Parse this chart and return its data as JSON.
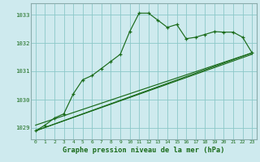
{
  "title": "Graphe pression niveau de la mer (hPa)",
  "background_color": "#ceeaee",
  "grid_color": "#8cc8c8",
  "line_color": "#1a6b1a",
  "border_color": "#8aabab",
  "xlim": [
    -0.5,
    23.5
  ],
  "ylim": [
    1028.6,
    1033.4
  ],
  "yticks": [
    1029,
    1030,
    1031,
    1032,
    1033
  ],
  "xticks": [
    0,
    1,
    2,
    3,
    4,
    5,
    6,
    7,
    8,
    9,
    10,
    11,
    12,
    13,
    14,
    15,
    16,
    17,
    18,
    19,
    20,
    21,
    22,
    23
  ],
  "series1_x": [
    0,
    1,
    2,
    3,
    4,
    5,
    6,
    7,
    8,
    9,
    10,
    11,
    12,
    13,
    14,
    15,
    16,
    17,
    18,
    19,
    20,
    21,
    22,
    23
  ],
  "series1_y": [
    1028.9,
    1029.1,
    1029.35,
    1029.5,
    1030.2,
    1030.7,
    1030.85,
    1031.1,
    1031.35,
    1031.6,
    1032.4,
    1033.05,
    1033.05,
    1032.8,
    1032.55,
    1032.65,
    1032.15,
    1032.2,
    1032.3,
    1032.4,
    1032.38,
    1032.38,
    1032.2,
    1031.65
  ],
  "line1_x": [
    0,
    23
  ],
  "line1_y": [
    1029.1,
    1031.65
  ],
  "line2_x": [
    0,
    23
  ],
  "line2_y": [
    1028.9,
    1031.65
  ],
  "line3_x": [
    0,
    23
  ],
  "line3_y": [
    1028.9,
    1031.6
  ]
}
